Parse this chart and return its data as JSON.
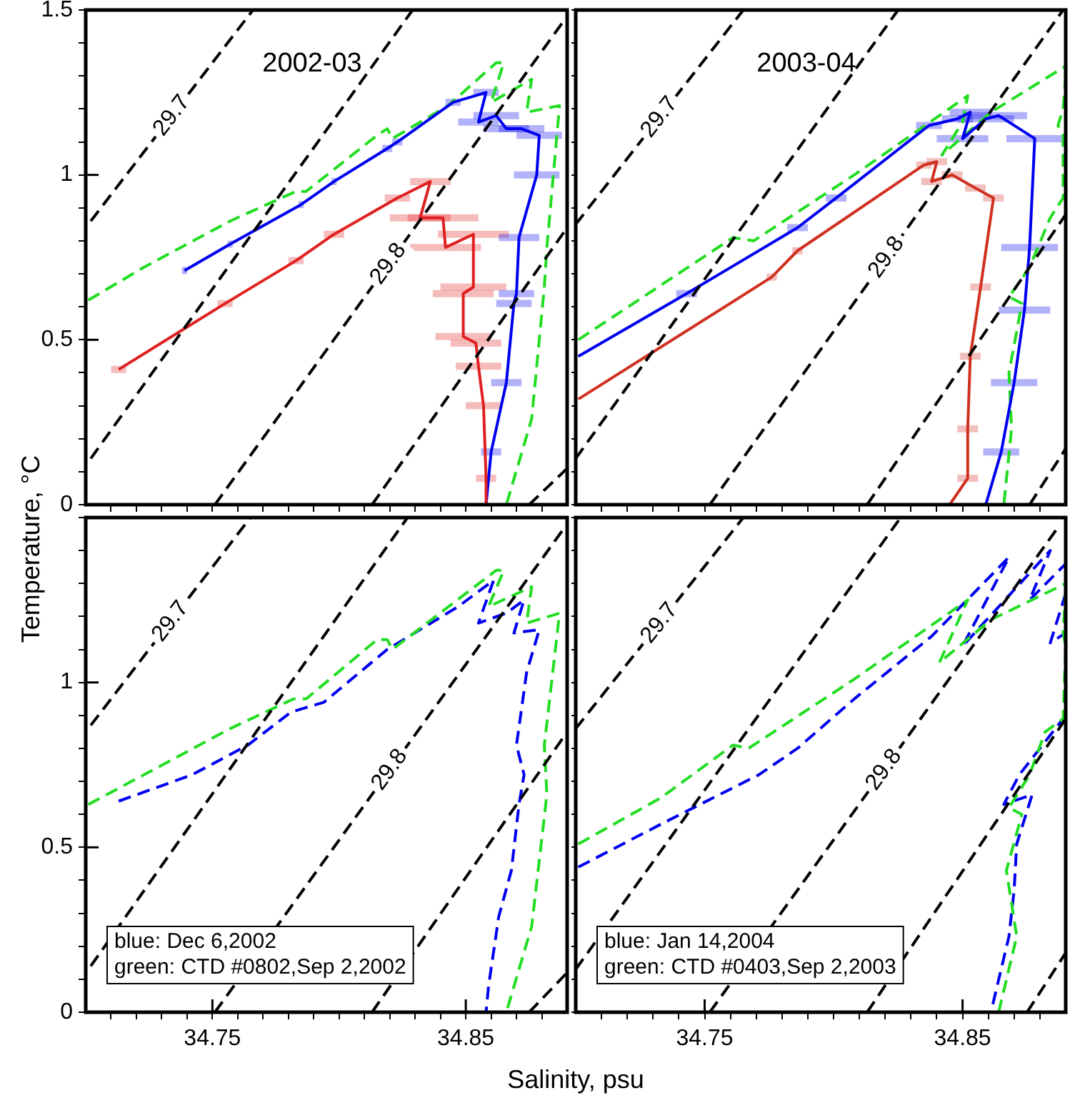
{
  "chart_data": [
    {
      "type": "line",
      "title": "2002-03",
      "ylabel": "Temperature, °C",
      "xlim": [
        34.7,
        34.89
      ],
      "ylim": [
        0,
        1.5
      ],
      "tick_labels": "y",
      "xticks": [
        {
          "value": 34.71,
          "label": null
        },
        {
          "value": 34.72,
          "label": null
        },
        {
          "value": 34.73,
          "label": null
        },
        {
          "value": 34.74,
          "label": null
        },
        {
          "value": 34.75,
          "label": null
        },
        {
          "value": 34.76,
          "label": null
        },
        {
          "value": 34.77,
          "label": null
        },
        {
          "value": 34.78,
          "label": null
        },
        {
          "value": 34.79,
          "label": null
        },
        {
          "value": 34.8,
          "label": null
        },
        {
          "value": 34.81,
          "label": null
        },
        {
          "value": 34.82,
          "label": null
        },
        {
          "value": 34.83,
          "label": null
        },
        {
          "value": 34.84,
          "label": null
        },
        {
          "value": 34.85,
          "label": null
        },
        {
          "value": 34.86,
          "label": null
        },
        {
          "value": 34.87,
          "label": null
        },
        {
          "value": 34.88,
          "label": null
        }
      ],
      "yticks": [
        0,
        {
          "value": 0.1,
          "label": null
        },
        {
          "value": 0.2,
          "label": null
        },
        {
          "value": 0.3,
          "label": null
        },
        {
          "value": 0.4,
          "label": null
        },
        0.5,
        {
          "value": 0.6,
          "label": null
        },
        {
          "value": 0.7,
          "label": null
        },
        {
          "value": 0.8,
          "label": null
        },
        {
          "value": 0.9,
          "label": null
        },
        1,
        {
          "value": 1.1,
          "label": null
        },
        {
          "value": 1.2,
          "label": null
        },
        {
          "value": 1.3,
          "label": null
        },
        {
          "value": 1.4,
          "label": null
        },
        1.5
      ],
      "series": [
        {
          "name": "29.7",
          "color": "#000000",
          "line_style": "dashed",
          "x": [
            34.702,
            34.766
          ],
          "values": [
            0.86,
            1.5
          ]
        },
        {
          "color": "#000000",
          "line_style": "dashed",
          "x": [
            34.702,
            34.829
          ],
          "values": [
            0.14,
            1.5
          ]
        },
        {
          "name": "29.8",
          "color": "#000000",
          "line_style": "dashed",
          "x": [
            34.751,
            34.888
          ],
          "values": [
            0,
            1.46
          ]
        },
        {
          "color": "#000000",
          "line_style": "dashed",
          "x": [
            34.813,
            34.89
          ],
          "values": [
            0,
            0.84
          ]
        },
        {
          "color": "#000000",
          "line_style": "dashed",
          "x": [
            34.875,
            34.89
          ],
          "values": [
            0,
            0.11
          ]
        },
        {
          "color": "#e02020",
          "line_style": "solid",
          "x": [
            34.713,
            34.755,
            34.783,
            34.798,
            34.823,
            34.836,
            34.832,
            34.841,
            34.842,
            34.853,
            34.853,
            34.849,
            34.849,
            34.854,
            34.855,
            34.857,
            34.858,
            34.858
          ],
          "values": [
            0.41,
            0.61,
            0.74,
            0.82,
            0.93,
            0.98,
            0.87,
            0.87,
            0.78,
            0.82,
            0.66,
            0.64,
            0.51,
            0.49,
            0.42,
            0.3,
            0.08,
            0
          ],
          "xerrors": [
            0.003,
            0.003,
            0.003,
            0.004,
            0.005,
            0.008,
            0.012,
            0.014,
            0.014,
            0.014,
            0.013,
            0.012,
            0.011,
            0.01,
            0.009,
            0.007,
            0.004,
            null
          ]
        },
        {
          "color": "#0000f0",
          "line_style": "solid",
          "x": [
            34.739,
            34.757,
            34.785,
            34.798,
            34.819,
            34.823,
            34.845,
            34.858,
            34.855,
            34.862,
            34.866,
            34.872,
            34.879,
            34.878,
            34.871,
            34.87,
            34.869,
            34.866,
            34.86,
            34.858
          ],
          "values": [
            0.71,
            0.79,
            0.91,
            0.98,
            1.08,
            1.1,
            1.22,
            1.25,
            1.16,
            1.18,
            1.14,
            1.14,
            1.12,
            1.0,
            0.81,
            0.64,
            0.61,
            0.37,
            0.16,
            0
          ],
          "xerrors": [
            0.001,
            0.001,
            0.001,
            0.001,
            0.002,
            0.002,
            0.003,
            0.005,
            0.008,
            0.009,
            0.009,
            0.009,
            0.009,
            0.009,
            0.008,
            0.007,
            0.007,
            0.006,
            0.004,
            null
          ]
        },
        {
          "color": "#22dd22",
          "line_style": "dashed",
          "x": [
            34.701,
            34.723,
            34.757,
            34.783,
            34.787,
            34.815,
            34.819,
            34.821,
            34.843,
            34.862,
            34.865,
            34.86,
            34.876,
            34.874,
            34.887,
            34.882,
            34.881,
            34.876,
            34.866
          ],
          "values": [
            0.62,
            0.72,
            0.86,
            0.95,
            0.95,
            1.12,
            1.14,
            1.11,
            1.21,
            1.34,
            1.34,
            1.22,
            1.29,
            1.19,
            1.21,
            0.78,
            0.66,
            0.26,
            0
          ]
        }
      ]
    },
    {
      "type": "line",
      "title": "2003-04",
      "xlim": [
        34.7,
        34.89
      ],
      "ylim": [
        0,
        1.5
      ],
      "tick_labels": false,
      "xticks": [
        {
          "value": 34.71,
          "label": null
        },
        {
          "value": 34.72,
          "label": null
        },
        {
          "value": 34.73,
          "label": null
        },
        {
          "value": 34.74,
          "label": null
        },
        {
          "value": 34.75,
          "label": null
        },
        {
          "value": 34.76,
          "label": null
        },
        {
          "value": 34.77,
          "label": null
        },
        {
          "value": 34.78,
          "label": null
        },
        {
          "value": 34.79,
          "label": null
        },
        {
          "value": 34.8,
          "label": null
        },
        {
          "value": 34.81,
          "label": null
        },
        {
          "value": 34.82,
          "label": null
        },
        {
          "value": 34.83,
          "label": null
        },
        {
          "value": 34.84,
          "label": null
        },
        {
          "value": 34.85,
          "label": null
        },
        {
          "value": 34.86,
          "label": null
        },
        {
          "value": 34.87,
          "label": null
        },
        {
          "value": 34.88,
          "label": null
        }
      ],
      "yticks": [
        {
          "value": 0,
          "label": null
        },
        {
          "value": 0.1,
          "label": null
        },
        {
          "value": 0.2,
          "label": null
        },
        {
          "value": 0.3,
          "label": null
        },
        {
          "value": 0.4,
          "label": null
        },
        {
          "value": 0.5,
          "label": null
        },
        {
          "value": 0.6,
          "label": null
        },
        {
          "value": 0.7,
          "label": null
        },
        {
          "value": 0.8,
          "label": null
        },
        {
          "value": 0.9,
          "label": null
        },
        {
          "value": 1,
          "label": null
        },
        {
          "value": 1.1,
          "label": null
        },
        {
          "value": 1.2,
          "label": null
        },
        {
          "value": 1.3,
          "label": null
        },
        {
          "value": 1.4,
          "label": null
        },
        {
          "value": 1.5,
          "label": null
        }
      ],
      "series": [
        {
          "name": "29.7",
          "color": "#000000",
          "line_style": "dashed",
          "x": [
            34.7,
            34.765
          ],
          "values": [
            0.85,
            1.5
          ]
        },
        {
          "color": "#000000",
          "line_style": "dashed",
          "x": [
            34.7,
            34.825
          ],
          "values": [
            0.14,
            1.5
          ]
        },
        {
          "name": "29.8",
          "color": "#000000",
          "line_style": "dashed",
          "x": [
            34.752,
            34.889
          ],
          "values": [
            0,
            1.5
          ]
        },
        {
          "color": "#000000",
          "line_style": "dashed",
          "x": [
            34.813,
            34.89
          ],
          "values": [
            0,
            0.88
          ]
        },
        {
          "color": "#000000",
          "line_style": "dashed",
          "x": [
            34.876,
            34.89
          ],
          "values": [
            0,
            0.17
          ]
        },
        {
          "color": "#d03020",
          "line_style": "solid",
          "x": [
            34.701,
            34.776,
            34.786,
            34.835,
            34.84,
            34.838,
            34.846,
            34.855,
            34.862,
            34.857,
            34.853,
            34.852,
            34.852,
            34.845
          ],
          "values": [
            0.32,
            0.69,
            0.77,
            1.03,
            1.04,
            0.98,
            1.0,
            0.96,
            0.93,
            0.66,
            0.45,
            0.23,
            0.08,
            0
          ],
          "xerrors": [
            null,
            0.002,
            0.002,
            0.003,
            0.004,
            0.004,
            0.004,
            0.004,
            0.004,
            0.004,
            0.004,
            0.004,
            0.004,
            null
          ]
        },
        {
          "color": "#0000f0",
          "line_style": "solid",
          "x": [
            34.701,
            34.743,
            34.786,
            34.801,
            34.837,
            34.848,
            34.853,
            34.85,
            34.859,
            34.864,
            34.878,
            34.876,
            34.874,
            34.87,
            34.865,
            34.859
          ],
          "values": [
            0.45,
            0.64,
            0.84,
            0.93,
            1.15,
            1.17,
            1.19,
            1.11,
            1.17,
            1.18,
            1.11,
            0.78,
            0.59,
            0.37,
            0.16,
            0
          ],
          "xerrors": [
            null,
            0.004,
            0.004,
            0.004,
            0.005,
            0.006,
            0.008,
            0.01,
            0.011,
            0.011,
            0.011,
            0.011,
            0.01,
            0.009,
            0.007,
            null
          ]
        },
        {
          "color": "#22dd22",
          "line_style": "dashed",
          "x": [
            34.701,
            34.761,
            34.769,
            34.808,
            34.852,
            34.85,
            34.842,
            34.861,
            34.89,
            null,
            34.89,
            34.889,
            34.887,
            34.889,
            34.889,
            34.884,
            34.876,
            34.868,
            34.873,
            34.868,
            34.869,
            34.866
          ],
          "values": [
            0.5,
            0.81,
            0.8,
            1.0,
            1.24,
            1.16,
            1.06,
            1.19,
            1.33,
            null,
            1.3,
            1.2,
            1.15,
            1.12,
            0.93,
            0.87,
            0.72,
            0.63,
            0.61,
            0.4,
            0.23,
            0
          ]
        }
      ]
    },
    {
      "type": "line",
      "xlabel": "Salinity, psu",
      "xlim": [
        34.7,
        34.89
      ],
      "ylim": [
        0,
        1.5
      ],
      "annotations": [
        "blue: Dec 6,2002",
        "green: CTD #0802,Sep 2,2002"
      ],
      "xticks": [
        {
          "value": 34.71,
          "label": null
        },
        {
          "value": 34.72,
          "label": null
        },
        {
          "value": 34.73,
          "label": null
        },
        {
          "value": 34.74,
          "label": null
        },
        {
          "value": 34.75,
          "label": "34.75"
        },
        {
          "value": 34.76,
          "label": null
        },
        {
          "value": 34.77,
          "label": null
        },
        {
          "value": 34.78,
          "label": null
        },
        {
          "value": 34.79,
          "label": null
        },
        {
          "value": 34.8,
          "label": null
        },
        {
          "value": 34.81,
          "label": null
        },
        {
          "value": 34.82,
          "label": null
        },
        {
          "value": 34.83,
          "label": null
        },
        {
          "value": 34.84,
          "label": null
        },
        {
          "value": 34.85,
          "label": "34.85"
        },
        {
          "value": 34.86,
          "label": null
        },
        {
          "value": 34.87,
          "label": null
        },
        {
          "value": 34.88,
          "label": null
        }
      ],
      "yticks": [
        0,
        {
          "value": 0.1,
          "label": null
        },
        {
          "value": 0.2,
          "label": null
        },
        {
          "value": 0.3,
          "label": null
        },
        {
          "value": 0.4,
          "label": null
        },
        0.5,
        {
          "value": 0.6,
          "label": null
        },
        {
          "value": 0.7,
          "label": null
        },
        {
          "value": 0.8,
          "label": null
        },
        {
          "value": 0.9,
          "label": null
        },
        1,
        {
          "value": 1.1,
          "label": null
        },
        {
          "value": 1.2,
          "label": null
        },
        {
          "value": 1.3,
          "label": null
        },
        {
          "value": 1.4,
          "label": null
        },
        {
          "value": 1.5,
          "label": null
        }
      ],
      "series": [
        {
          "name": "29.7",
          "color": "#000000",
          "line_style": "dashed",
          "x": [
            34.702,
            34.765
          ],
          "values": [
            0.87,
            1.5
          ]
        },
        {
          "color": "#000000",
          "line_style": "dashed",
          "x": [
            34.702,
            34.827
          ],
          "values": [
            0.14,
            1.5
          ]
        },
        {
          "name": "29.8",
          "color": "#000000",
          "line_style": "dashed",
          "x": [
            34.751,
            34.889
          ],
          "values": [
            0,
            1.47
          ]
        },
        {
          "color": "#000000",
          "line_style": "dashed",
          "x": [
            34.813,
            34.89
          ],
          "values": [
            0,
            0.85
          ]
        },
        {
          "color": "#000000",
          "line_style": "dashed",
          "x": [
            34.875,
            34.89
          ],
          "values": [
            0,
            0.12
          ]
        },
        {
          "color": "#22dd22",
          "line_style": "dashed",
          "x": [
            34.701,
            34.723,
            34.757,
            34.782,
            34.787,
            34.815,
            34.819,
            34.821,
            34.862,
            34.865,
            34.859,
            34.876,
            34.874,
            34.887,
            34.881,
            34.882,
            34.876,
            34.866
          ],
          "values": [
            0.63,
            0.72,
            0.86,
            0.95,
            0.95,
            1.13,
            1.13,
            1.1,
            1.34,
            1.34,
            1.23,
            1.29,
            1.18,
            1.21,
            0.81,
            0.66,
            0.26,
            0
          ]
        },
        {
          "color": "#0000f0",
          "line_style": "dashed",
          "x": [
            34.713,
            34.742,
            34.764,
            34.781,
            34.794,
            34.819,
            34.847,
            34.861,
            34.855,
            34.866,
            34.873,
            34.869,
            34.879,
            34.874,
            34.87,
            34.873,
            34.871,
            34.868,
            34.863,
            34.859,
            34.858
          ],
          "values": [
            0.64,
            0.72,
            0.81,
            0.91,
            0.94,
            1.1,
            1.23,
            1.31,
            1.18,
            1.21,
            1.25,
            1.15,
            1.16,
            1.03,
            0.81,
            0.72,
            0.63,
            0.43,
            0.29,
            0.08,
            0
          ]
        }
      ]
    },
    {
      "type": "line",
      "xlim": [
        34.7,
        34.89
      ],
      "ylim": [
        0,
        1.5
      ],
      "tick_labels": "x",
      "annotations": [
        "blue: Jan 14,2004",
        "green: CTD #0403,Sep 2,2003"
      ],
      "xticks": [
        {
          "value": 34.71,
          "label": null
        },
        {
          "value": 34.72,
          "label": null
        },
        {
          "value": 34.73,
          "label": null
        },
        {
          "value": 34.74,
          "label": null
        },
        34.75,
        {
          "value": 34.76,
          "label": null
        },
        {
          "value": 34.77,
          "label": null
        },
        {
          "value": 34.78,
          "label": null
        },
        {
          "value": 34.79,
          "label": null
        },
        {
          "value": 34.8,
          "label": null
        },
        {
          "value": 34.81,
          "label": null
        },
        {
          "value": 34.82,
          "label": null
        },
        {
          "value": 34.83,
          "label": null
        },
        {
          "value": 34.84,
          "label": null
        },
        34.85,
        {
          "value": 34.86,
          "label": null
        },
        {
          "value": 34.87,
          "label": null
        },
        {
          "value": 34.88,
          "label": null
        }
      ],
      "yticks": [
        {
          "value": 0,
          "label": null
        },
        {
          "value": 0.1,
          "label": null
        },
        {
          "value": 0.2,
          "label": null
        },
        {
          "value": 0.3,
          "label": null
        },
        {
          "value": 0.4,
          "label": null
        },
        {
          "value": 0.5,
          "label": null
        },
        {
          "value": 0.6,
          "label": null
        },
        {
          "value": 0.7,
          "label": null
        },
        {
          "value": 0.8,
          "label": null
        },
        {
          "value": 0.9,
          "label": null
        },
        {
          "value": 1,
          "label": null
        },
        {
          "value": 1.1,
          "label": null
        },
        {
          "value": 1.2,
          "label": null
        },
        {
          "value": 1.3,
          "label": null
        },
        {
          "value": 1.4,
          "label": null
        },
        {
          "value": 1.5,
          "label": null
        }
      ],
      "series": [
        {
          "name": "29.7",
          "color": "#000000",
          "line_style": "dashed",
          "x": [
            34.7,
            34.765
          ],
          "values": [
            0.86,
            1.5
          ]
        },
        {
          "color": "#000000",
          "line_style": "dashed",
          "x": [
            34.7,
            34.826
          ],
          "values": [
            0.13,
            1.5
          ]
        },
        {
          "name": "29.8",
          "color": "#000000",
          "line_style": "dashed",
          "x": [
            34.752,
            34.887
          ],
          "values": [
            0,
            1.47
          ]
        },
        {
          "color": "#000000",
          "line_style": "dashed",
          "x": [
            34.813,
            34.89
          ],
          "values": [
            0,
            0.89
          ]
        },
        {
          "color": "#000000",
          "line_style": "dashed",
          "x": [
            34.875,
            34.89
          ],
          "values": [
            0,
            0.18
          ]
        },
        {
          "color": "#22dd22",
          "line_style": "dashed",
          "x": [
            34.701,
            34.733,
            34.761,
            34.767,
            34.808,
            34.852,
            34.841,
            34.861,
            34.89,
            null,
            34.89,
            34.889,
            34.89,
            34.889,
            34.882,
            34.876,
            34.868,
            34.873,
            34.867,
            34.871,
            34.864
          ],
          "values": [
            0.51,
            0.65,
            0.81,
            0.8,
            1.01,
            1.25,
            1.06,
            1.19,
            1.3,
            null,
            1.28,
            1.15,
            1.11,
            0.89,
            0.85,
            0.72,
            0.62,
            0.6,
            0.43,
            0.23,
            0
          ]
        },
        {
          "color": "#0000f0",
          "line_style": "dashed",
          "x": [
            34.701,
            34.733,
            34.771,
            34.786,
            34.808,
            34.838,
            34.868,
            34.85,
            34.884,
            34.876,
            34.89,
            null,
            34.89,
            34.884,
            34.89,
            null,
            34.89,
            34.872,
            34.866,
            34.877,
            34.871,
            34.87,
            34.868,
            34.861
          ],
          "values": [
            0.44,
            0.57,
            0.72,
            0.8,
            0.95,
            1.14,
            1.38,
            1.11,
            1.4,
            1.25,
            1.36,
            null,
            1.27,
            1.12,
            1.15,
            null,
            0.9,
            0.72,
            0.63,
            0.66,
            0.51,
            0.37,
            0.23,
            0
          ]
        }
      ]
    }
  ]
}
